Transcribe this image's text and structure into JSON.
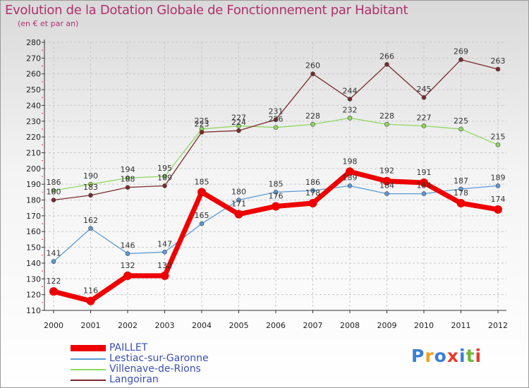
{
  "title": "Evolution de la Dotation Globale de Fonctionnement par Habitant",
  "subtitle": "(en € et par an)",
  "logo": {
    "text": "Proxiti",
    "colors": [
      "#3b7fd4",
      "#f0a020",
      "#3b7fd4",
      "#e83a2e",
      "#3b7fd4",
      "#70b83a",
      "#e83a2e"
    ]
  },
  "chart_data": {
    "type": "line",
    "title": "Evolution de la Dotation Globale de Fonctionnement par Habitant",
    "subtitle": "(en € et par an)",
    "xlabel": "",
    "ylabel": "",
    "ylim": [
      110,
      280
    ],
    "ytick_step": 10,
    "grid": true,
    "categories": [
      "2000",
      "2001",
      "2002",
      "2003",
      "2004",
      "2005",
      "2006",
      "2007",
      "2008",
      "2009",
      "2010",
      "2011",
      "2012"
    ],
    "series": [
      {
        "name": "PAILLET",
        "color": "#ee0000",
        "thick": true,
        "values": [
          122,
          116,
          132,
          132,
          185,
          171,
          176,
          178,
          198,
          192,
          191,
          178,
          174
        ]
      },
      {
        "name": "Lestiac-sur-Garonne",
        "color": "#5b9bd5",
        "thick": false,
        "values": [
          141,
          162,
          146,
          147,
          165,
          180,
          185,
          186,
          189,
          184,
          184,
          187,
          189
        ]
      },
      {
        "name": "Villenave-de-Rions",
        "color": "#8fd860",
        "thick": false,
        "values": [
          186,
          190,
          194,
          195,
          225,
          227,
          226,
          228,
          232,
          228,
          227,
          225,
          215
        ]
      },
      {
        "name": "Langoiran",
        "color": "#7a2a2a",
        "thick": false,
        "values": [
          180,
          183,
          188,
          189,
          223,
          224,
          231,
          260,
          244,
          266,
          245,
          269,
          263
        ]
      }
    ],
    "legend_position": "bottom-left"
  }
}
